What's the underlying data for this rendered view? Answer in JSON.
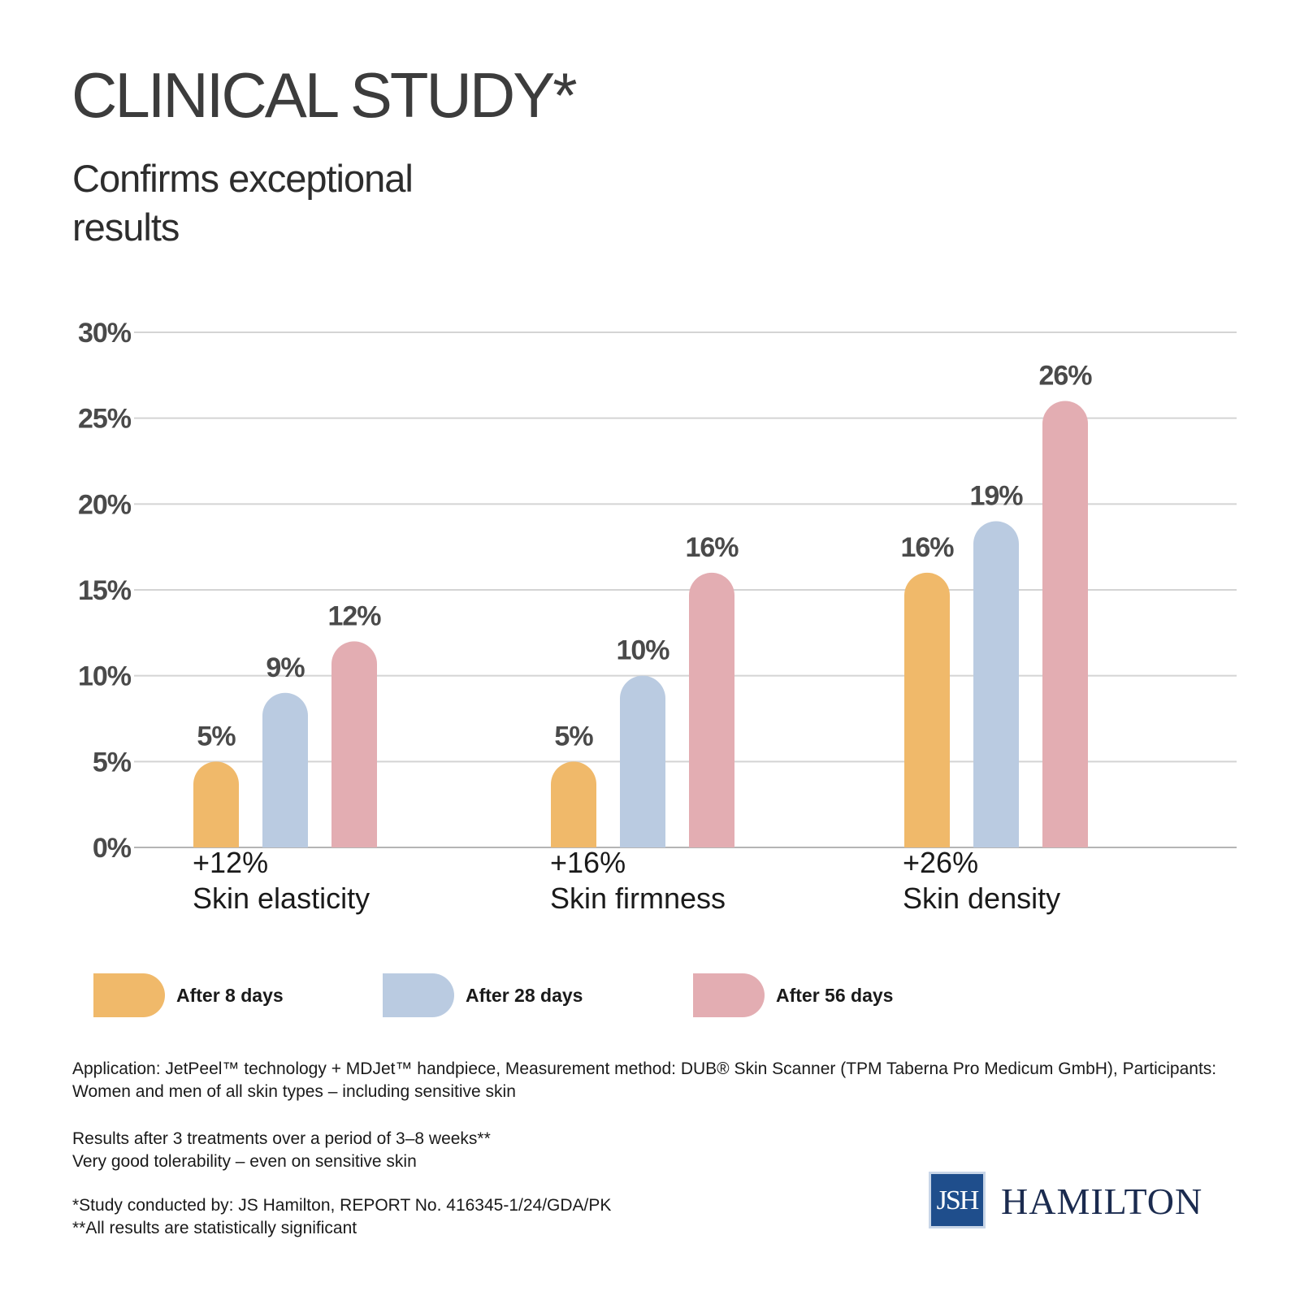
{
  "header": {
    "title": "CLINICAL STUDY*",
    "subtitle": "Confirms exceptional results"
  },
  "chart_data": {
    "type": "bar",
    "title": "",
    "xlabel": "",
    "ylabel": "",
    "ylim": [
      0,
      30
    ],
    "yticks": [
      0,
      5,
      10,
      15,
      20,
      25,
      30
    ],
    "ytick_labels": [
      "0%",
      "5%",
      "10%",
      "15%",
      "20%",
      "25%",
      "30%"
    ],
    "grid": true,
    "legend_position": "bottom",
    "categories": [
      "Skin elasticity",
      "Skin firmness",
      "Skin density"
    ],
    "category_totals": [
      "+12%",
      "+16%",
      "+26%"
    ],
    "series": [
      {
        "name": "After 8 days",
        "values": [
          5,
          5,
          16
        ],
        "labels": [
          "5%",
          "5%",
          "16%"
        ],
        "color": "#f0b96a"
      },
      {
        "name": "After 28 days",
        "values": [
          9,
          10,
          19
        ],
        "labels": [
          "9%",
          "10%",
          "19%"
        ],
        "color": "#bacbe1"
      },
      {
        "name": "After 56 days",
        "values": [
          12,
          16,
          26
        ],
        "labels": [
          "12%",
          "16%",
          "26%"
        ],
        "color": "#e3adb2"
      }
    ]
  },
  "notes": {
    "application": "Application: JetPeel™ technology + MDJet™ handpiece, Measurement method: DUB® Skin Scanner (TPM Taberna Pro Medicum GmbH), Participants: Women and men of all skin types – including sensitive skin",
    "results_line1": "Results after 3 treatments over a period of 3–8 weeks**",
    "results_line2": "Very good tolerability – even on sensitive skin",
    "footnote1": "*Study conducted by: JS Hamilton, REPORT No. 416345-1/24/GDA/PK",
    "footnote2": "**All results are statistically significant"
  },
  "logo": {
    "mark": "JSH",
    "word": "HAMILTON",
    "color": "#1f4e8c"
  }
}
